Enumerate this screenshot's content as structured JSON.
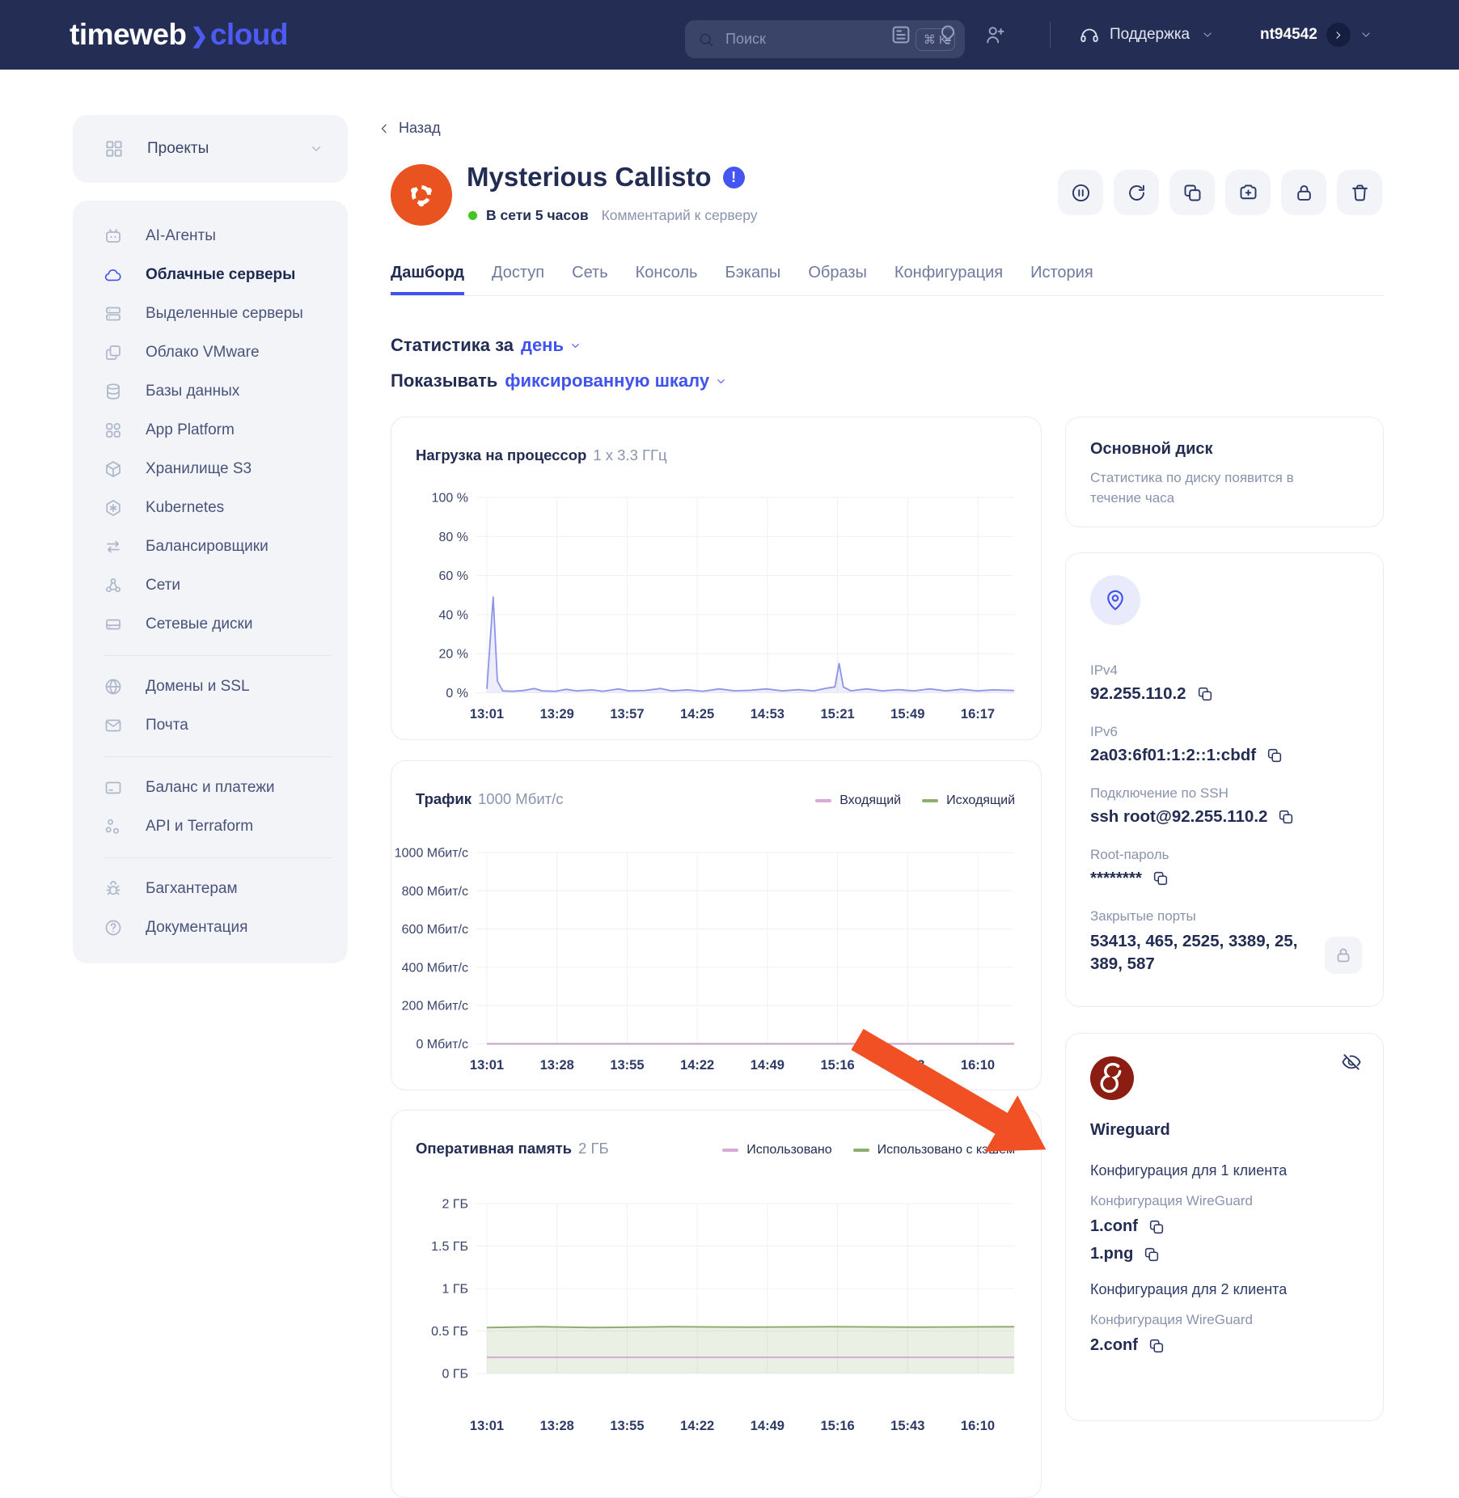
{
  "topbar": {
    "logo": {
      "word1": "timeweb",
      "sep": "❯",
      "word2": "cloud"
    },
    "search": {
      "placeholder": "Поиск",
      "shortcut": "⌘ K"
    },
    "icons": [
      {
        "name": "news-icon"
      },
      {
        "name": "idea-icon"
      },
      {
        "name": "invite-user-icon"
      }
    ],
    "support_label": "Поддержка",
    "account_login": "nt94542"
  },
  "sidebar": {
    "projects_label": "Проекты",
    "groups": [
      {
        "items": [
          {
            "icon": "robot-icon",
            "label": "AI-Агенты",
            "active": false
          },
          {
            "icon": "cloud-icon",
            "label": "Облачные серверы",
            "active": true
          },
          {
            "icon": "server-icon",
            "label": "Выделенные серверы",
            "active": false
          },
          {
            "icon": "vmware-icon",
            "label": "Облако VMware",
            "active": false
          },
          {
            "icon": "database-icon",
            "label": "Базы данных",
            "active": false
          },
          {
            "icon": "app-grid-icon",
            "label": "App Platform",
            "active": false
          },
          {
            "icon": "cube-icon",
            "label": "Хранилище S3",
            "active": false
          },
          {
            "icon": "kubernetes-icon",
            "label": "Kubernetes",
            "active": false
          },
          {
            "icon": "swap-arrows-icon",
            "label": "Балансировщики",
            "active": false
          },
          {
            "icon": "network-nodes-icon",
            "label": "Сети",
            "active": false
          },
          {
            "icon": "network-disk-icon",
            "label": "Сетевые диски",
            "active": false
          }
        ]
      },
      {
        "items": [
          {
            "icon": "globe-icon",
            "label": "Домены и SSL",
            "active": false
          },
          {
            "icon": "mail-icon",
            "label": "Почта",
            "active": false
          }
        ]
      },
      {
        "items": [
          {
            "icon": "credit-card-icon",
            "label": "Баланс и платежи",
            "active": false
          },
          {
            "icon": "api-circles-icon",
            "label": "API и Terraform",
            "active": false
          }
        ]
      },
      {
        "items": [
          {
            "icon": "bug-icon",
            "label": "Багхантерам",
            "active": false
          },
          {
            "icon": "question-circle-icon",
            "label": "Документация",
            "active": false
          }
        ]
      }
    ]
  },
  "header": {
    "back_label": "Назад",
    "server_name": "Mysterious Callisto",
    "status_text": "В сети 5 часов",
    "comment_link": "Комментарий к серверу",
    "actions": [
      {
        "icon": "pause-circle-icon",
        "name": "pause-server-button"
      },
      {
        "icon": "restart-icon",
        "name": "restart-server-button"
      },
      {
        "icon": "clone-icon",
        "name": "clone-server-button"
      },
      {
        "icon": "snapshot-camera-icon",
        "name": "create-snapshot-button"
      },
      {
        "icon": "lock-icon",
        "name": "lock-server-button"
      },
      {
        "icon": "trash-icon",
        "name": "delete-server-button"
      }
    ]
  },
  "tabs": [
    {
      "label": "Дашборд",
      "active": true
    },
    {
      "label": "Доступ",
      "active": false
    },
    {
      "label": "Сеть",
      "active": false
    },
    {
      "label": "Консоль",
      "active": false
    },
    {
      "label": "Бэкапы",
      "active": false
    },
    {
      "label": "Образы",
      "active": false
    },
    {
      "label": "Конфигурация",
      "active": false
    },
    {
      "label": "История",
      "active": false
    }
  ],
  "controls": {
    "stats_prefix": "Статистика за",
    "stats_value": "день",
    "scale_prefix": "Показывать",
    "scale_value": "фиксированную шкалу"
  },
  "charts": {
    "cpu": {
      "type": "area",
      "title": "Нагрузка на процессор",
      "subtitle": "1 x 3.3 ГГц",
      "ymax": 100,
      "yticks": [
        "100 %",
        "80 %",
        "60 %",
        "40 %",
        "20 %",
        "0 %"
      ],
      "xticks": [
        "13:01",
        "13:29",
        "13:57",
        "14:25",
        "14:53",
        "15:21",
        "15:49",
        "16:17"
      ],
      "legend": [],
      "series": [
        {
          "name": "cpu-load",
          "color": "#8f93e8",
          "fill": "rgba(140,145,230,0.16)",
          "width": 1.8,
          "points": [
            [
              0,
              2
            ],
            [
              0.012,
              49
            ],
            [
              0.02,
              6
            ],
            [
              0.03,
              1
            ],
            [
              0.05,
              0.8
            ],
            [
              0.07,
              1.2
            ],
            [
              0.09,
              2.2
            ],
            [
              0.105,
              1
            ],
            [
              0.13,
              0.8
            ],
            [
              0.15,
              1.8
            ],
            [
              0.17,
              1
            ],
            [
              0.2,
              1.5
            ],
            [
              0.22,
              0.8
            ],
            [
              0.25,
              2
            ],
            [
              0.27,
              1
            ],
            [
              0.3,
              1.2
            ],
            [
              0.33,
              2.2
            ],
            [
              0.35,
              1
            ],
            [
              0.38,
              1.5
            ],
            [
              0.41,
              0.8
            ],
            [
              0.44,
              2
            ],
            [
              0.47,
              1
            ],
            [
              0.5,
              1.3
            ],
            [
              0.53,
              2
            ],
            [
              0.56,
              1
            ],
            [
              0.59,
              1.6
            ],
            [
              0.62,
              1
            ],
            [
              0.645,
              2.4
            ],
            [
              0.66,
              3
            ],
            [
              0.668,
              15
            ],
            [
              0.676,
              3
            ],
            [
              0.69,
              1
            ],
            [
              0.72,
              2
            ],
            [
              0.75,
              1
            ],
            [
              0.78,
              1.6
            ],
            [
              0.81,
              1
            ],
            [
              0.84,
              2
            ],
            [
              0.87,
              1
            ],
            [
              0.9,
              1.8
            ],
            [
              0.93,
              1
            ],
            [
              0.96,
              1.5
            ],
            [
              1,
              1.2
            ]
          ]
        }
      ]
    },
    "traffic": {
      "type": "line",
      "title": "Трафик",
      "subtitle": "1000 Мбит/с",
      "ymax": 1000,
      "yticks": [
        "1000 Мбит/с",
        "800 Мбит/с",
        "600 Мбит/с",
        "400 Мбит/с",
        "200 Мбит/с",
        "0 Мбит/с"
      ],
      "xticks": [
        "13:01",
        "13:28",
        "13:55",
        "14:22",
        "14:49",
        "15:16",
        "15:43",
        "16:10"
      ],
      "legend": [
        {
          "label": "Входящий",
          "color": "#d8a9d4"
        },
        {
          "label": "Исходящий",
          "color": "#8fae6d"
        }
      ],
      "series": [
        {
          "name": "outgoing",
          "color": "#8fae6d",
          "width": 2,
          "points": [
            [
              0,
              0
            ],
            [
              1,
              0
            ]
          ]
        },
        {
          "name": "incoming",
          "color": "#c9a9ce",
          "width": 2.2,
          "points": [
            [
              0,
              0
            ],
            [
              1,
              0
            ]
          ]
        }
      ]
    },
    "ram": {
      "type": "area",
      "title": "Оперативная память",
      "subtitle": "2 ГБ",
      "ymax": 2,
      "yticks": [
        "2 ГБ",
        "1.5 ГБ",
        "1 ГБ",
        "0.5 ГБ",
        "0 ГБ"
      ],
      "xticks": [
        "13:01",
        "13:28",
        "13:55",
        "14:22",
        "14:49",
        "15:16",
        "15:43",
        "16:10"
      ],
      "legend": [
        {
          "label": "Использовано",
          "color": "#d8a9d4"
        },
        {
          "label": "Использовано с кэшем",
          "color": "#8fae6d"
        }
      ],
      "series": [
        {
          "name": "used-with-cache",
          "color": "#8fae6d",
          "fill": "rgba(143,174,109,0.18)",
          "width": 2,
          "points": [
            [
              0,
              0.54
            ],
            [
              0.1,
              0.55
            ],
            [
              0.2,
              0.54
            ],
            [
              0.35,
              0.55
            ],
            [
              0.5,
              0.545
            ],
            [
              0.65,
              0.55
            ],
            [
              0.8,
              0.545
            ],
            [
              1,
              0.55
            ]
          ]
        },
        {
          "name": "used",
          "color": "#d8a9d4",
          "width": 2,
          "points": [
            [
              0,
              0.19
            ],
            [
              1,
              0.19
            ]
          ]
        }
      ]
    }
  },
  "disk_card": {
    "title": "Основной диск",
    "body": "Статистика по диску появится в течение часа"
  },
  "ip_card": {
    "fields": [
      {
        "label": "IPv4",
        "value": "92.255.110.2",
        "copy": true,
        "wrap": false
      },
      {
        "label": "IPv6",
        "value": "2a03:6f01:1:2::1:cbdf",
        "copy": true,
        "wrap": false
      },
      {
        "label": "Подключение по SSH",
        "value": "ssh root@92.255.110.2",
        "copy": true,
        "wrap": false
      },
      {
        "label": "Root-пароль",
        "value": "********",
        "copy": true,
        "wrap": false
      },
      {
        "label": "Закрытые порты",
        "value": "53413, 465, 2525, 3389, 25, 389, 587",
        "copy": false,
        "wrap": true
      }
    ]
  },
  "wireguard": {
    "title": "Wireguard",
    "sections": [
      {
        "heading": "Конфигурация для 1 клиента",
        "sub": "Конфигурация WireGuard",
        "files": [
          "1.conf",
          "1.png"
        ]
      },
      {
        "heading": "Конфигурация для 2 клиента",
        "sub": "Конфигурация WireGuard",
        "files": [
          "2.conf"
        ]
      }
    ]
  },
  "colors": {
    "accent_blue": "#4053f0",
    "navy": "#232c52",
    "ubuntu_orange": "#e9531f",
    "status_green": "#43c523",
    "annotation_arrow": "#f14f24",
    "wireguard_red": "#8b1d12"
  }
}
